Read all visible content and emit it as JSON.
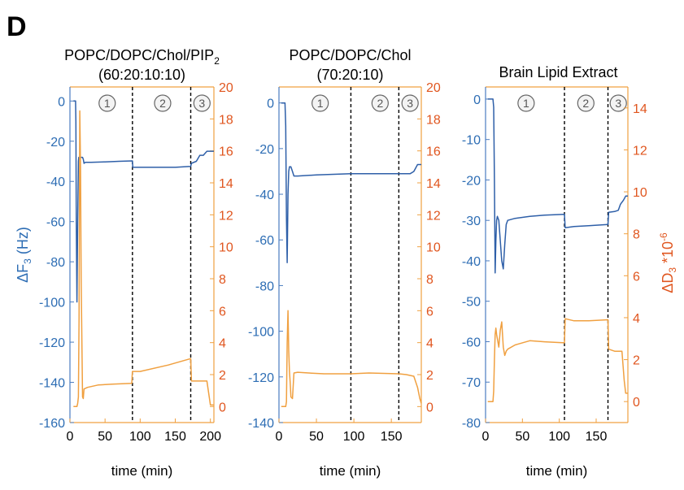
{
  "panel_label": "D",
  "colors": {
    "left_axis": "#2d6db4",
    "right_axis": "#e0561f",
    "freq_line": "#2e5fa8",
    "diss_line": "#f0a040",
    "frame_right": "#f0a040",
    "frame_left": "#4a7cc0"
  },
  "chart_data": [
    {
      "type": "line",
      "title_line1": "POPC/DOPC/Chol/PIP",
      "title_sub": "2",
      "title_line2": "(60:20:10:10)",
      "xlabel": "time (min)",
      "ylabel_left": "ΔF",
      "ylabel_left_sub": "3",
      "ylabel_left_unit": " (Hz)",
      "xlim": [
        0,
        205
      ],
      "ylim_left": [
        -160,
        7
      ],
      "ylim_right": [
        -1,
        20
      ],
      "xticks": [
        0,
        50,
        100,
        150,
        200
      ],
      "yticks_left": [
        0,
        -20,
        -40,
        -60,
        -80,
        -100,
        -120,
        -140,
        -160
      ],
      "yticks_right": [
        0,
        2,
        4,
        6,
        8,
        10,
        12,
        14,
        16,
        18,
        20
      ],
      "phase_lines": [
        89,
        172
      ],
      "phase_labels": [
        {
          "x": 53,
          "label": "1"
        },
        {
          "x": 132,
          "label": "2"
        },
        {
          "x": 188,
          "label": "3"
        }
      ],
      "series": [
        {
          "axis": "left",
          "x": [
            5,
            8,
            8.5,
            9,
            10,
            11,
            12,
            12.6,
            13,
            14,
            15,
            16,
            17,
            18,
            19,
            20,
            22,
            25,
            30,
            50,
            70,
            89,
            89.5,
            120,
            150,
            172,
            173,
            180,
            185,
            190,
            195,
            200,
            205
          ],
          "y": [
            0,
            0,
            -10,
            -60,
            -100,
            -60,
            -30,
            -28,
            -28,
            -28,
            -28,
            -28,
            -28,
            -28,
            -29,
            -31,
            -30.5,
            -30.5,
            -30.5,
            -30.3,
            -30,
            -29.8,
            -33,
            -33,
            -33,
            -32.5,
            -31,
            -30,
            -27,
            -27,
            -25,
            -25,
            -25
          ]
        },
        {
          "axis": "right",
          "x": [
            5,
            10,
            11,
            12,
            13,
            14,
            15,
            16,
            17,
            18,
            19,
            20,
            25,
            40,
            60,
            88,
            89,
            100,
            140,
            172,
            173,
            180,
            195,
            200,
            205
          ],
          "y": [
            0,
            0,
            0.2,
            0.6,
            5.5,
            18.5,
            15,
            8,
            4,
            0.6,
            0.5,
            1.1,
            1.2,
            1.35,
            1.4,
            1.45,
            2.2,
            2.2,
            2.6,
            3.0,
            1.6,
            1.6,
            1.6,
            0.1,
            0.1
          ]
        }
      ]
    },
    {
      "type": "line",
      "title_line1": "POPC/DOPC/Chol",
      "title_sub": "",
      "title_line2": "(70:20:10)",
      "xlabel": "time (min)",
      "xlim": [
        0,
        190
      ],
      "ylim_left": [
        -140,
        7
      ],
      "ylim_right": [
        -1,
        20
      ],
      "xticks": [
        0,
        50,
        100,
        150
      ],
      "yticks_left": [
        0,
        -20,
        -40,
        -60,
        -80,
        -100,
        -120,
        -140
      ],
      "yticks_right": [
        0,
        2,
        4,
        6,
        8,
        10,
        12,
        14,
        16,
        18,
        20
      ],
      "phase_lines": [
        96,
        160
      ],
      "phase_labels": [
        {
          "x": 55,
          "label": "1"
        },
        {
          "x": 135,
          "label": "2"
        },
        {
          "x": 175,
          "label": "3"
        }
      ],
      "series": [
        {
          "axis": "left",
          "x": [
            3,
            8,
            9,
            10,
            11,
            12,
            13,
            14,
            15,
            16,
            18,
            20,
            25,
            50,
            96,
            130,
            160,
            175,
            180,
            185,
            190
          ],
          "y": [
            0,
            0,
            -10,
            -50,
            -70,
            -40,
            -30,
            -28,
            -28,
            -28,
            -30,
            -32,
            -32,
            -31.5,
            -31,
            -31,
            -31,
            -31,
            -30,
            -27,
            -27
          ]
        },
        {
          "axis": "right",
          "x": [
            3,
            9,
            10,
            11,
            12,
            13,
            14,
            15,
            16,
            18,
            20,
            25,
            40,
            60,
            96,
            120,
            160,
            170,
            180,
            185,
            188,
            190
          ],
          "y": [
            0,
            0,
            0.3,
            4,
            6,
            3.5,
            2.2,
            1.5,
            0.6,
            0.5,
            2.1,
            2.15,
            2.1,
            2.05,
            2.05,
            2.1,
            2.05,
            2.0,
            1.9,
            1.2,
            0.5,
            0.2
          ]
        }
      ]
    },
    {
      "type": "line",
      "title_line1": "Brain Lipid Extract",
      "title_sub": "",
      "title_line2": "",
      "xlabel": "time (min)",
      "ylabel_right": "ΔD",
      "ylabel_right_sub": "3",
      "ylabel_right_unit": " *10",
      "ylabel_right_sup": "-6",
      "xlim": [
        0,
        193
      ],
      "ylim_left": [
        -80,
        3
      ],
      "ylim_right": [
        -1,
        15
      ],
      "xticks": [
        0,
        50,
        100,
        150
      ],
      "yticks_left": [
        0,
        -10,
        -20,
        -30,
        -40,
        -50,
        -60,
        -70,
        -80
      ],
      "yticks_right": [
        0,
        2,
        4,
        6,
        8,
        10,
        12,
        14
      ],
      "phase_lines": [
        107,
        166
      ],
      "phase_labels": [
        {
          "x": 55,
          "label": "1"
        },
        {
          "x": 136,
          "label": "2"
        },
        {
          "x": 180,
          "label": "3"
        }
      ],
      "series": [
        {
          "axis": "left",
          "x": [
            3,
            10,
            11,
            12,
            13,
            14,
            15,
            16,
            18,
            20,
            22,
            24,
            26,
            28,
            30,
            40,
            60,
            80,
            107,
            108,
            120,
            140,
            166,
            167,
            175,
            180,
            183,
            187,
            190,
            193
          ],
          "y": [
            0,
            0,
            -2,
            -20,
            -43,
            -35,
            -30,
            -29,
            -30,
            -35,
            -40,
            -42,
            -36,
            -31,
            -30,
            -29.5,
            -29,
            -28.7,
            -28.5,
            -31.8,
            -31.5,
            -31.3,
            -31,
            -28,
            -27.8,
            -27.5,
            -26,
            -25,
            -24,
            -24
          ]
        },
        {
          "axis": "right",
          "x": [
            3,
            10,
            11,
            12,
            13,
            14,
            15,
            16,
            18,
            20,
            22,
            24,
            26,
            28,
            30,
            40,
            60,
            80,
            107,
            108,
            120,
            140,
            166,
            167,
            175,
            180,
            185,
            188,
            190,
            193
          ],
          "y": [
            0,
            0,
            0.5,
            2,
            3.2,
            3.5,
            3.2,
            3.0,
            2.6,
            3.4,
            3.8,
            2.6,
            2.2,
            2.4,
            2.5,
            2.7,
            2.9,
            2.85,
            2.8,
            3.95,
            3.85,
            3.85,
            3.9,
            2.5,
            2.4,
            2.4,
            2.4,
            1.0,
            0.4,
            0.4
          ]
        }
      ]
    }
  ]
}
